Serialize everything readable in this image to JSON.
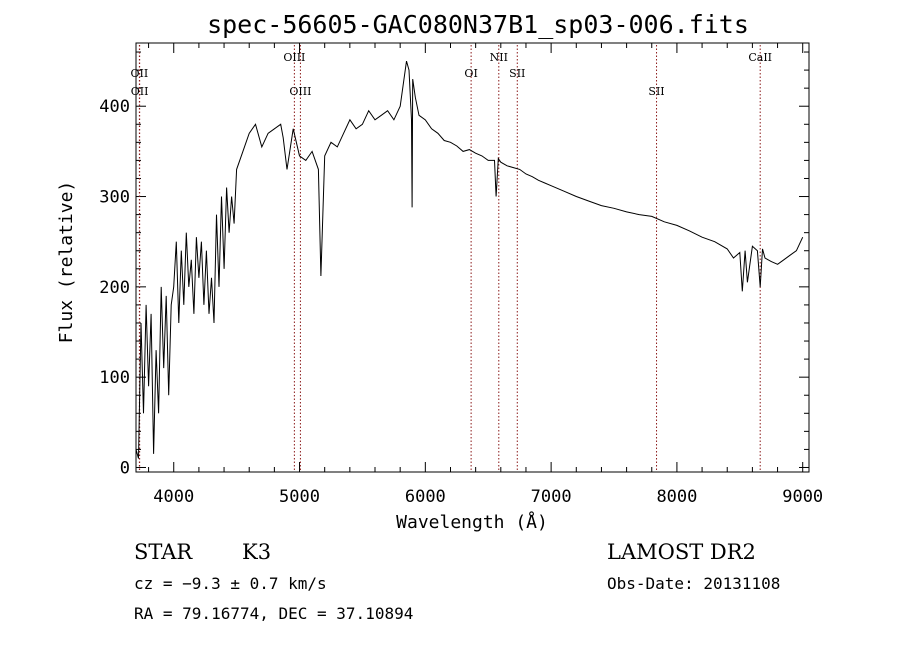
{
  "chart_data": {
    "type": "line",
    "title": "spec-56605-GAC080N37B1_sp03-006.fits",
    "xlabel": "Wavelength (Å)",
    "ylabel": "Flux (relative)",
    "xlim": [
      3700,
      9050
    ],
    "ylim": [
      -5,
      470
    ],
    "xticks": [
      4000,
      5000,
      6000,
      7000,
      8000,
      9000
    ],
    "yticks": [
      0,
      100,
      200,
      300,
      400
    ],
    "series": [
      {
        "x": [
          3700,
          3720,
          3740,
          3760,
          3780,
          3800,
          3820,
          3840,
          3860,
          3880,
          3900,
          3920,
          3940,
          3960,
          3980,
          4000,
          4020,
          4040,
          4060,
          4080,
          4100,
          4120,
          4140,
          4160,
          4180,
          4200,
          4220,
          4240,
          4260,
          4280,
          4300,
          4320,
          4340,
          4360,
          4380,
          4400,
          4420,
          4440,
          4460,
          4480,
          4500,
          4550,
          4600,
          4650,
          4700,
          4750,
          4800,
          4850,
          4870,
          4900,
          4950,
          5000,
          5050,
          5100,
          5150,
          5170,
          5200,
          5250,
          5300,
          5350,
          5400,
          5450,
          5500,
          5550,
          5600,
          5650,
          5700,
          5750,
          5800,
          5850,
          5870,
          5890,
          5895,
          5900,
          5920,
          5950,
          6000,
          6050,
          6100,
          6150,
          6200,
          6250,
          6300,
          6350,
          6400,
          6450,
          6500,
          6550,
          6563,
          6580,
          6600,
          6650,
          6700,
          6750,
          6800,
          6850,
          6900,
          6950,
          7000,
          7100,
          7200,
          7300,
          7400,
          7500,
          7600,
          7700,
          7800,
          7900,
          8000,
          8100,
          8200,
          8300,
          8400,
          8450,
          8500,
          8520,
          8542,
          8560,
          8600,
          8640,
          8662,
          8680,
          8700,
          8750,
          8800,
          8850,
          8900,
          8950,
          9000
        ],
        "values": [
          20,
          10,
          160,
          60,
          180,
          90,
          170,
          15,
          130,
          60,
          200,
          110,
          190,
          80,
          180,
          200,
          250,
          160,
          240,
          180,
          260,
          200,
          230,
          170,
          255,
          210,
          250,
          180,
          240,
          170,
          210,
          160,
          280,
          200,
          300,
          220,
          310,
          260,
          300,
          270,
          330,
          350,
          370,
          380,
          355,
          370,
          375,
          380,
          365,
          330,
          375,
          345,
          340,
          350,
          330,
          212,
          345,
          360,
          355,
          370,
          385,
          375,
          380,
          395,
          385,
          390,
          395,
          385,
          400,
          450,
          440,
          385,
          288,
          430,
          410,
          390,
          385,
          375,
          370,
          362,
          360,
          356,
          350,
          352,
          348,
          345,
          340,
          340,
          300,
          342,
          338,
          334,
          332,
          330,
          325,
          322,
          318,
          315,
          312,
          306,
          300,
          295,
          290,
          287,
          283,
          280,
          278,
          272,
          268,
          262,
          255,
          250,
          242,
          232,
          238,
          195,
          240,
          205,
          245,
          240,
          200,
          242,
          232,
          228,
          225,
          230,
          235,
          240,
          255
        ]
      }
    ],
    "lines": [
      {
        "label": "OII",
        "x": 3727,
        "row": 2
      },
      {
        "label": "OII",
        "x": 3729,
        "row": 3
      },
      {
        "label": "OIII",
        "x": 4959,
        "row": 1
      },
      {
        "label": "OIII",
        "x": 5007,
        "row": 3
      },
      {
        "label": "OI",
        "x": 6364,
        "row": 2
      },
      {
        "label": "NII",
        "x": 6584,
        "row": 1
      },
      {
        "label": "SII",
        "x": 6731,
        "row": 2
      },
      {
        "label": "SII",
        "x": 7838,
        "row": 3
      },
      {
        "label": "CaII",
        "x": 8662,
        "row": 1
      }
    ]
  },
  "info": {
    "class": "STAR",
    "subclass": "K3",
    "survey": "LAMOST DR2",
    "cz": "cz = −9.3 ± 0.7 km/s",
    "obsdate": "Obs-Date: 20131108",
    "radec": "RA =  79.16774, DEC =  37.10894"
  }
}
